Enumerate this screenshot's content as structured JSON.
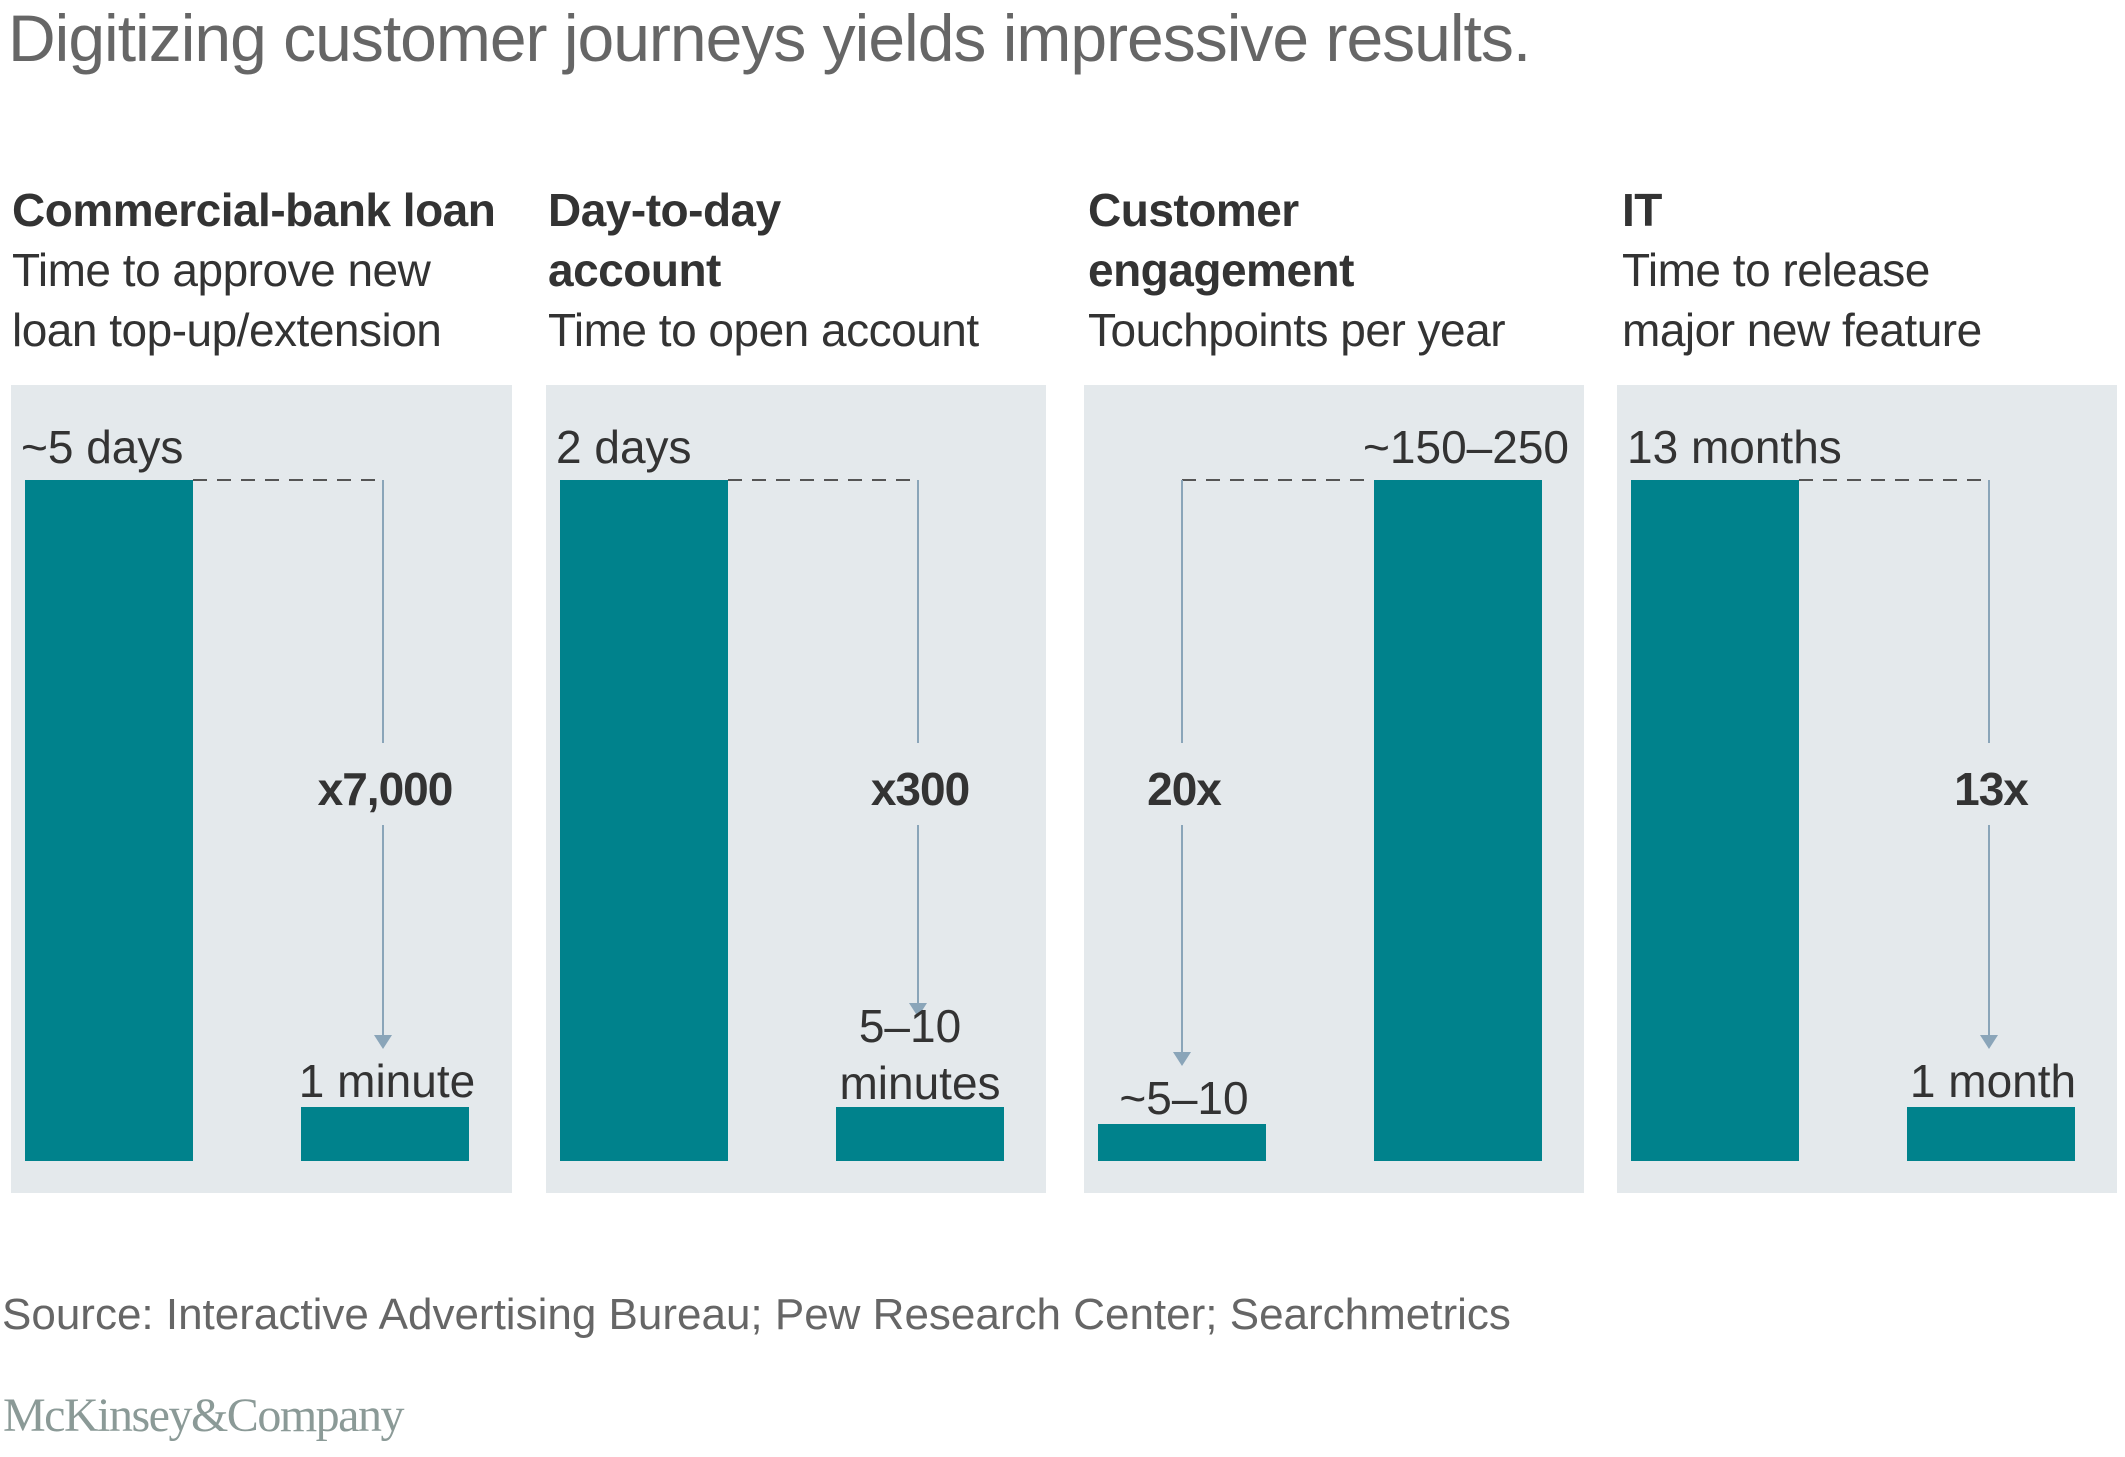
{
  "title": "Digitizing customer journeys yields impressive results.",
  "source": "Source: Interactive Advertising Bureau; Pew Research Center; Searchmetrics",
  "logo": "McKinsey&Company",
  "colors": {
    "bar": "#00828c",
    "panel_bg": "#e4e9ec",
    "arrow": "#8aa5b9",
    "dash": "#555555"
  },
  "columns": [
    {
      "head_bold": [
        "Commercial-bank loan"
      ],
      "head_normal": [
        "Time to approve new",
        "loan top-up/extension"
      ]
    },
    {
      "head_bold": [
        "Day-to-day",
        "account"
      ],
      "head_normal": [
        "Time to open account"
      ]
    },
    {
      "head_bold": [
        "Customer",
        "engagement"
      ],
      "head_normal": [
        "Touchpoints per year"
      ]
    },
    {
      "head_bold": [
        "IT"
      ],
      "head_normal": [
        "Time to release",
        "major new feature"
      ]
    }
  ],
  "chart_data": {
    "type": "bar",
    "title": "Digitizing customer journeys yields impressive results.",
    "panels": [
      {
        "name": "Commercial-bank loan",
        "metric": "Time to approve new loan top-up/extension",
        "bars": [
          {
            "label": "~5 days",
            "relative_height": 1.0
          },
          {
            "label": "1 minute",
            "relative_height": 0.08
          }
        ],
        "change_label": "x7,000",
        "arrow_direction": "down"
      },
      {
        "name": "Day-to-day account",
        "metric": "Time to open account",
        "bars": [
          {
            "label": "2 days",
            "relative_height": 1.0
          },
          {
            "label": "5–10 minutes",
            "relative_height": 0.08
          }
        ],
        "change_label": "x300",
        "arrow_direction": "down"
      },
      {
        "name": "Customer engagement",
        "metric": "Touchpoints per year",
        "bars": [
          {
            "label": "~5–10",
            "relative_height": 0.055
          },
          {
            "label": "~150–250",
            "relative_height": 1.0
          }
        ],
        "change_label": "20x",
        "arrow_direction": "up"
      },
      {
        "name": "IT",
        "metric": "Time to release major new feature",
        "bars": [
          {
            "label": "13 months",
            "relative_height": 1.0
          },
          {
            "label": "1 month",
            "relative_height": 0.08
          }
        ],
        "change_label": "13x",
        "arrow_direction": "down"
      }
    ],
    "xlabel": "",
    "ylabel": "",
    "grid": false
  }
}
